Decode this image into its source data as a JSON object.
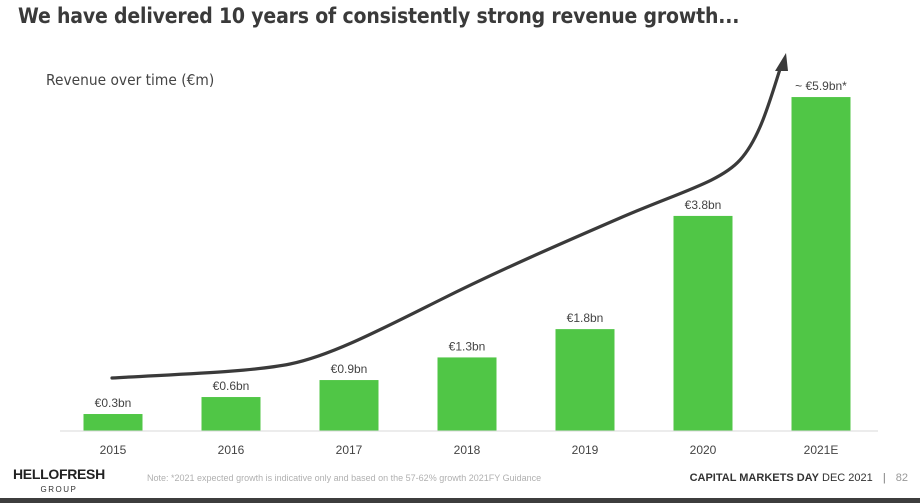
{
  "header": {
    "title": "We have delivered 10 years of consistently strong revenue growth...",
    "subtitle": "Revenue over time (€m)"
  },
  "chart_data": {
    "type": "bar",
    "title": "Revenue over time (€m)",
    "xlabel": "",
    "ylabel": "",
    "categories": [
      "2015",
      "2016",
      "2017",
      "2018",
      "2019",
      "2020",
      "2021E"
    ],
    "values": [
      0.3,
      0.6,
      0.9,
      1.3,
      1.8,
      3.8,
      5.9
    ],
    "unit": "€bn",
    "data_labels": [
      "€0.3bn",
      "€0.6bn",
      "€0.9bn",
      "€1.3bn",
      "€1.8bn",
      "€3.8bn",
      "~ €5.9bn*"
    ],
    "ylim": [
      0,
      6.5
    ],
    "grid": false,
    "bar_color": "#50c646",
    "annotations": [
      {
        "type": "trend-arrow",
        "description": "Upward curved arrow indicating accelerating growth from 2015 to 2021E",
        "color": "#3a3a3a"
      }
    ]
  },
  "footer": {
    "logo_main": "HELLOFRESH",
    "logo_sub": "GROUP",
    "note": "Note: *2021 expected growth is indicative only and based on the 57-62% growth 2021FY Guidance",
    "event_bold": "CAPITAL MARKETS DAY",
    "event_date": "DEC 2021",
    "separator": "|",
    "page_number": "82"
  }
}
